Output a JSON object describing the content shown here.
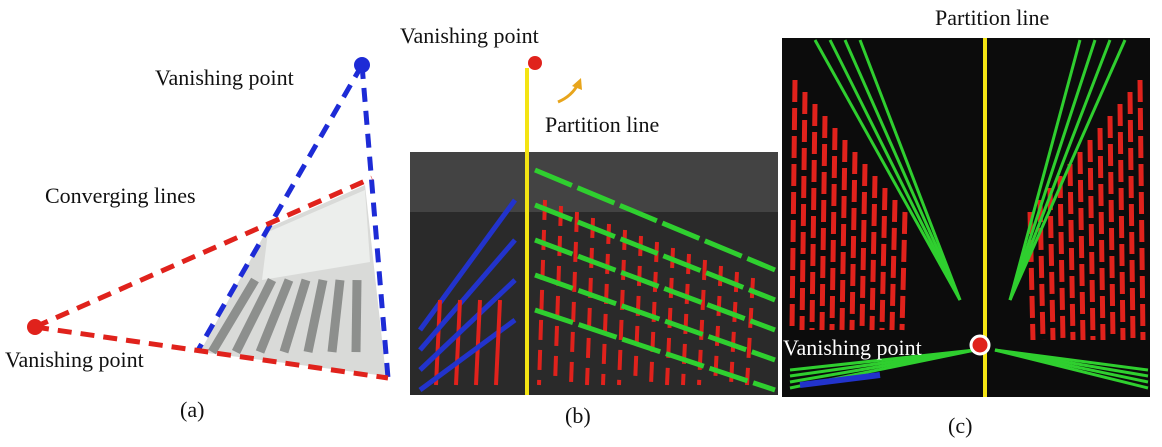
{
  "panels": [
    {
      "label": "(a)",
      "top_vanishing_point": "Vanishing point",
      "converging_lines": "Converging lines",
      "bottom_vanishing_point": "Vanishing point"
    },
    {
      "label": "(b)",
      "vanishing_point": "Vanishing point",
      "partition_line": "Partition line"
    },
    {
      "label": "(c)",
      "vanishing_point": "Vanishing point",
      "partition_line": "Partition line"
    }
  ]
}
